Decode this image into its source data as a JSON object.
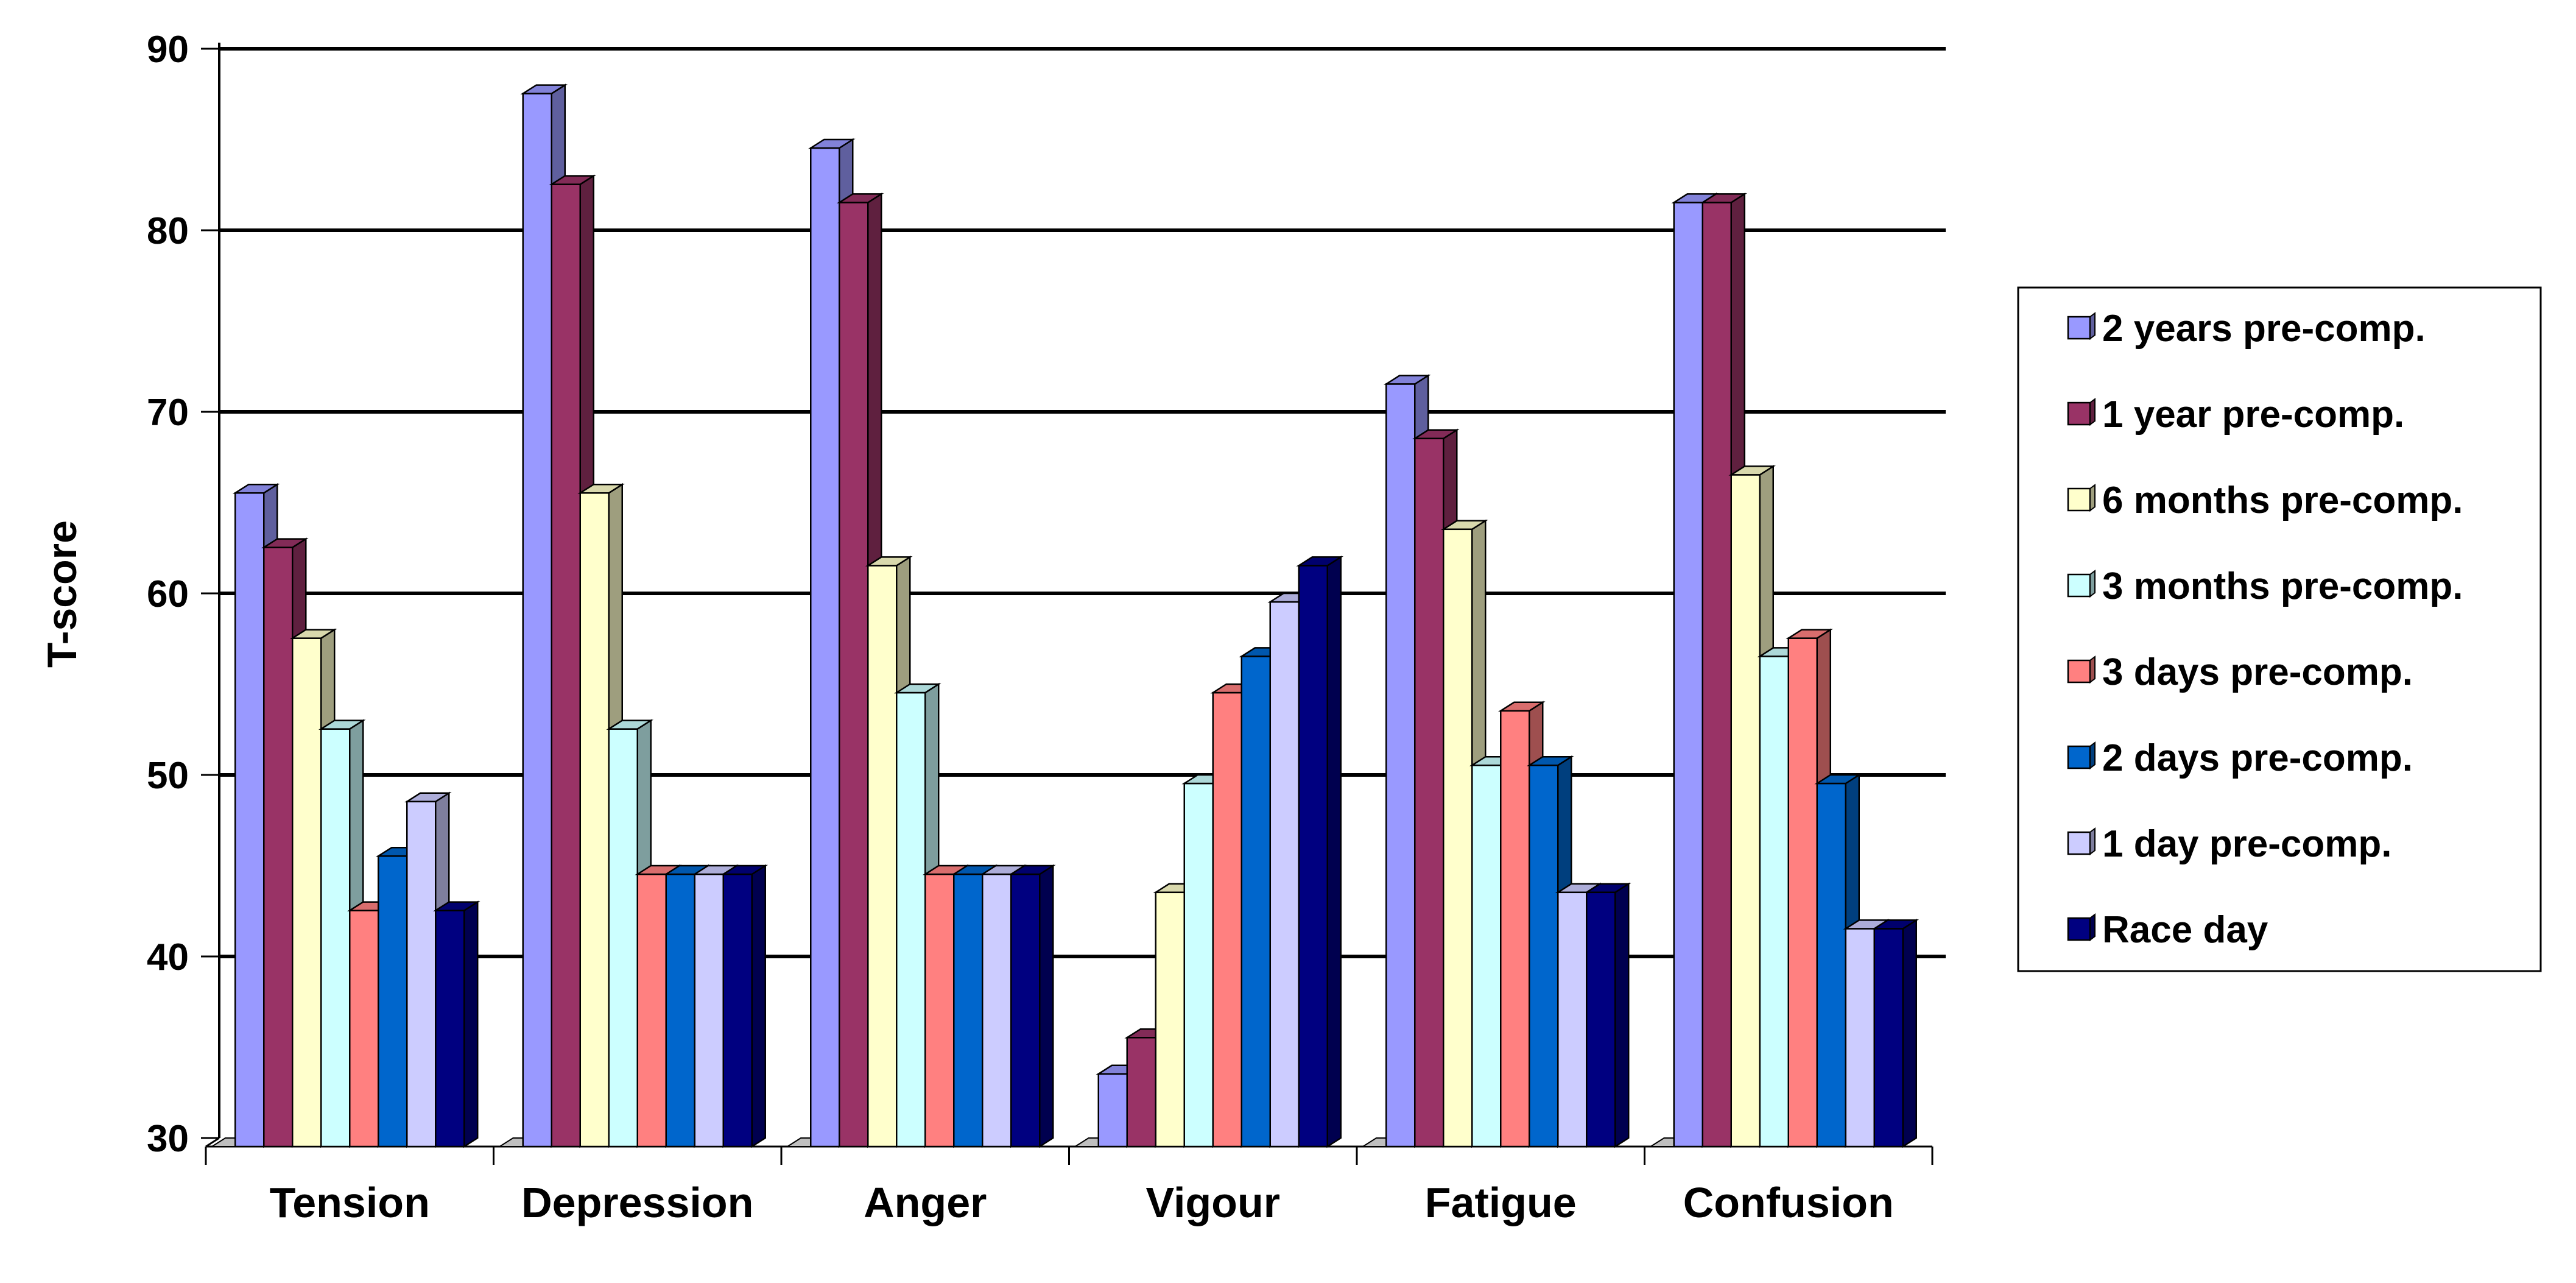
{
  "chart_data": {
    "type": "bar",
    "title": "",
    "xlabel": "",
    "ylabel": "T-score",
    "ylim": [
      30,
      90
    ],
    "yticks": [
      "30",
      "40",
      "50",
      "60",
      "70",
      "80",
      "90"
    ],
    "grid": true,
    "legend_position": "right",
    "categories": [
      "Tension",
      "Depression",
      "Anger",
      "Vigour",
      "Fatigue",
      "Confusion"
    ],
    "series": [
      {
        "name": "2 years pre-comp.",
        "color": "#9999ff",
        "values": [
          66,
          88,
          85,
          34,
          72,
          82
        ]
      },
      {
        "name": "1 year pre-comp.",
        "color": "#993366",
        "values": [
          63,
          83,
          82,
          36,
          69,
          82
        ]
      },
      {
        "name": "6 months pre-comp.",
        "color": "#ffffcc",
        "values": [
          58,
          66,
          62,
          44,
          64,
          67
        ]
      },
      {
        "name": "3 months pre-comp.",
        "color": "#ccffff",
        "values": [
          53,
          53,
          55,
          50,
          51,
          57
        ]
      },
      {
        "name": "3 days pre-comp.",
        "color": "#ff8080",
        "values": [
          43,
          45,
          45,
          55,
          54,
          58
        ]
      },
      {
        "name": "2 days pre-comp.",
        "color": "#0066cc",
        "values": [
          46,
          45,
          45,
          57,
          51,
          50
        ]
      },
      {
        "name": "1 day pre-comp.",
        "color": "#ccccff",
        "values": [
          49,
          45,
          45,
          60,
          44,
          42
        ]
      },
      {
        "name": "Race day",
        "color": "#000080",
        "values": [
          43,
          45,
          45,
          62,
          44,
          42
        ]
      }
    ]
  }
}
